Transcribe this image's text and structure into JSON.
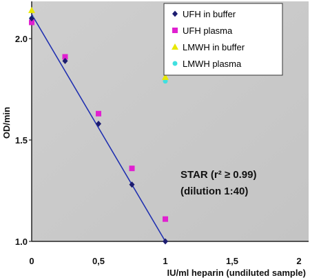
{
  "chart_data": {
    "type": "scatter",
    "xlabel": "IU/ml heparin (undiluted sample)",
    "ylabel": "OD/min",
    "xlim": [
      0,
      2
    ],
    "ylim": [
      1.0,
      2.2
    ],
    "x_ticks": [
      "0",
      "0,5",
      "1",
      "1,5",
      "2"
    ],
    "y_ticks": [
      {
        "value": 1.0,
        "label": "1.0"
      },
      {
        "value": 1.5,
        "label": "1.5"
      },
      {
        "value": 2.0,
        "label": "2.0"
      }
    ],
    "grid": false,
    "legend_position": "top-right",
    "annotation_line1": "STAR  (r² ≥ 0.99)",
    "annotation_line2": "(dilution 1:40)",
    "series": [
      {
        "name": "UFH in buffer",
        "color": "#1c1c70",
        "marker": "diamond",
        "x": [
          0,
          0.25,
          0.5,
          0.75,
          1.0
        ],
        "y": [
          2.1,
          1.89,
          1.58,
          1.28,
          1.0
        ]
      },
      {
        "name": "UFH plasma",
        "color": "#e020d0",
        "marker": "square",
        "x": [
          0,
          0.25,
          0.5,
          0.75,
          1.0
        ],
        "y": [
          2.08,
          1.91,
          1.63,
          1.36,
          1.11
        ]
      },
      {
        "name": "LMWH in buffer",
        "color": "#e8e800",
        "marker": "triangle",
        "x": [
          0,
          1.0
        ],
        "y": [
          2.14,
          1.81
        ]
      },
      {
        "name": "LMWH plasma",
        "color": "#40e0e0",
        "marker": "circle",
        "x": [
          0,
          1.0
        ],
        "y": [
          2.1,
          1.79
        ]
      }
    ],
    "trendline": {
      "color": "#2030b0",
      "x": [
        0,
        1.0
      ],
      "y": [
        2.12,
        1.0
      ]
    }
  }
}
